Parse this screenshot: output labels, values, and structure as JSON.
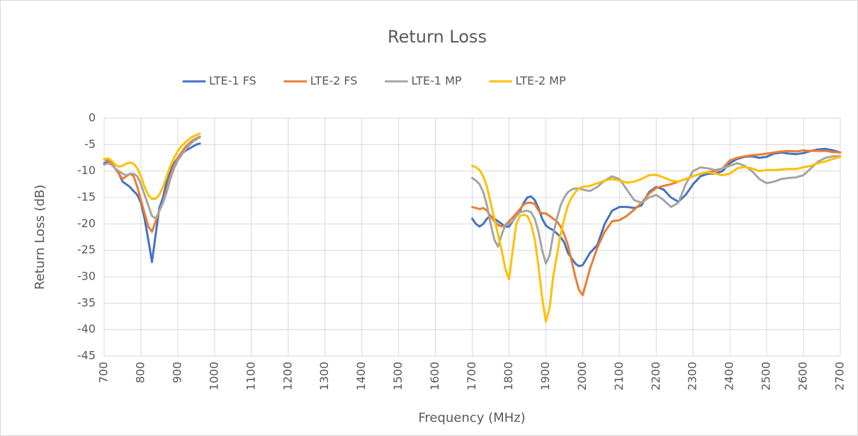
{
  "chart_data": {
    "type": "line",
    "title": "Return Loss",
    "x_label": "Frequency (MHz)",
    "y_label": "Return Loss (dB)",
    "legend": "top",
    "grid": true,
    "xlim": [
      700,
      2700
    ],
    "ylim": [
      -45,
      0
    ],
    "xticks": [
      700,
      800,
      900,
      1000,
      1100,
      1200,
      1300,
      1400,
      1500,
      1600,
      1700,
      1800,
      1900,
      2000,
      2100,
      2200,
      2300,
      2400,
      2500,
      2600,
      2700
    ],
    "yticks": [
      0,
      -5,
      -10,
      -15,
      -20,
      -25,
      -30,
      -35,
      -40,
      -45
    ],
    "x": [
      700,
      710,
      720,
      730,
      740,
      750,
      760,
      770,
      780,
      790,
      800,
      810,
      820,
      830,
      840,
      850,
      860,
      870,
      880,
      890,
      900,
      910,
      920,
      930,
      940,
      950,
      960,
      1000,
      1700,
      1710,
      1720,
      1730,
      1740,
      1750,
      1760,
      1770,
      1780,
      1790,
      1800,
      1810,
      1820,
      1830,
      1840,
      1850,
      1860,
      1870,
      1880,
      1890,
      1900,
      1910,
      1920,
      1930,
      1940,
      1950,
      1960,
      1970,
      1980,
      1990,
      2000,
      2020,
      2040,
      2060,
      2080,
      2100,
      2120,
      2140,
      2160,
      2180,
      2200,
      2220,
      2240,
      2260,
      2280,
      2300,
      2320,
      2340,
      2360,
      2380,
      2400,
      2420,
      2440,
      2460,
      2480,
      2500,
      2520,
      2540,
      2560,
      2580,
      2600,
      2620,
      2640,
      2660,
      2680,
      2700
    ],
    "series": [
      {
        "name": "LTE-1 FS",
        "color": "#4472c4",
        "values": [
          -8.5,
          -8.2,
          -8.6,
          -9.5,
          -10.5,
          -12,
          -12.5,
          -13,
          -13.8,
          -14.5,
          -16,
          -19,
          -23,
          -27.2,
          -22,
          -17,
          -15,
          -12,
          -10,
          -8.5,
          -7.5,
          -6.8,
          -6.2,
          -5.8,
          -5.4,
          -5,
          -4.8,
          null,
          -19,
          -20,
          -20.5,
          -20,
          -19,
          -18.5,
          -19,
          -19.5,
          -20,
          -20.5,
          -20.5,
          -19.5,
          -18.5,
          -17.5,
          -16,
          -15,
          -14.8,
          -15.5,
          -17,
          -19,
          -20.3,
          -20.8,
          -21.2,
          -21.8,
          -22.5,
          -23.5,
          -25.5,
          -26.5,
          -27.5,
          -28,
          -27.8,
          -25.5,
          -24,
          -20,
          -17.5,
          -16.8,
          -16.8,
          -17,
          -16.5,
          -14,
          -13,
          -13.5,
          -15,
          -15.8,
          -14.5,
          -12.5,
          -11,
          -10.5,
          -10.5,
          -10,
          -8.5,
          -7.7,
          -7.3,
          -7.2,
          -7.5,
          -7.3,
          -6.7,
          -6.5,
          -6.7,
          -6.8,
          -6.6,
          -6.2,
          -5.9,
          -5.8,
          -6.1,
          -6.5
        ]
      },
      {
        "name": "LTE-2 FS",
        "color": "#ed7d31",
        "values": [
          -7.8,
          -8,
          -8.5,
          -9.5,
          -10.5,
          -11.5,
          -11,
          -10.5,
          -11,
          -13,
          -15.5,
          -18,
          -20.5,
          -21.5,
          -19.5,
          -17.5,
          -16,
          -13.5,
          -11,
          -9,
          -7.5,
          -6.5,
          -5.5,
          -4.8,
          -4.2,
          -3.8,
          -3.5,
          null,
          -16.8,
          -17,
          -17.2,
          -17,
          -17.5,
          -18.5,
          -19.5,
          -20.2,
          -20.5,
          -20.2,
          -19.5,
          -18.8,
          -18,
          -17.2,
          -16.3,
          -16,
          -16,
          -16.2,
          -17.5,
          -18,
          -18,
          -18.5,
          -19,
          -19.5,
          -20.5,
          -22,
          -24,
          -27,
          -30,
          -32.5,
          -33.5,
          -28.5,
          -24.5,
          -21.5,
          -19.5,
          -19.3,
          -18.5,
          -17.3,
          -16,
          -14.3,
          -13.2,
          -12.8,
          -12.5,
          -12,
          -11.5,
          -11,
          -10.5,
          -10.2,
          -10,
          -9.5,
          -8,
          -7.5,
          -7.2,
          -7,
          -6.9,
          -6.7,
          -6.5,
          -6.3,
          -6.2,
          -6.3,
          -6.1,
          -6.2,
          -6.2,
          -6.2,
          -6.4,
          -6.5
        ]
      },
      {
        "name": "LTE-1 MP",
        "color": "#a5a5a5",
        "values": [
          -8.8,
          -8.5,
          -8.8,
          -9.5,
          -10,
          -10.5,
          -10.8,
          -10.5,
          -10.5,
          -11,
          -12.5,
          -14.5,
          -16.5,
          -18.5,
          -19,
          -17.5,
          -16,
          -14,
          -11.5,
          -9.5,
          -8,
          -7,
          -6,
          -5.2,
          -4.5,
          -4,
          -3.6,
          null,
          -11.3,
          -11.8,
          -12.5,
          -14,
          -16.5,
          -20,
          -23,
          -24.3,
          -22,
          -20.2,
          -20,
          -19.5,
          -18.5,
          -17.8,
          -17.6,
          -17.5,
          -17.8,
          -19,
          -21.5,
          -25,
          -27.5,
          -26,
          -22,
          -19,
          -16.5,
          -15,
          -14,
          -13.5,
          -13.3,
          -13.3,
          -13.5,
          -13.8,
          -13,
          -11.8,
          -11,
          -11.5,
          -13.5,
          -15.5,
          -16,
          -15,
          -14.5,
          -15.5,
          -16.8,
          -16,
          -12.5,
          -10,
          -9.3,
          -9.5,
          -9.8,
          -9.5,
          -9,
          -8.5,
          -9,
          -10,
          -11.5,
          -12.3,
          -12,
          -11.5,
          -11.3,
          -11.2,
          -10.8,
          -9.5,
          -8.2,
          -7.5,
          -7.2,
          -7.2
        ]
      },
      {
        "name": "LTE-2 MP",
        "color": "#ffc000",
        "values": [
          -7.8,
          -7.6,
          -8,
          -8.8,
          -9.2,
          -9,
          -8.6,
          -8.4,
          -8.6,
          -9.5,
          -11,
          -13,
          -14.5,
          -15.3,
          -15.2,
          -14.5,
          -13,
          -11,
          -9,
          -7.5,
          -6.2,
          -5.3,
          -4.6,
          -4,
          -3.5,
          -3.2,
          -2.9,
          null,
          -9,
          -9.3,
          -9.8,
          -11,
          -13,
          -16,
          -19,
          -22,
          -25,
          -28.5,
          -30.5,
          -25,
          -20,
          -18.5,
          -18.3,
          -18.5,
          -20,
          -23,
          -28,
          -34,
          -38.5,
          -36,
          -30,
          -26,
          -22,
          -19,
          -16.5,
          -15,
          -14,
          -13.3,
          -13,
          -12.8,
          -12.3,
          -11.8,
          -11.5,
          -11.8,
          -12.2,
          -12,
          -11.5,
          -10.8,
          -10.7,
          -11.2,
          -11.8,
          -12,
          -11.5,
          -11,
          -10.5,
          -10.2,
          -10.5,
          -10.8,
          -10.5,
          -9.5,
          -9.2,
          -9.5,
          -10,
          -9.8,
          -9.8,
          -9.7,
          -9.6,
          -9.6,
          -9.3,
          -9,
          -8.5,
          -8.2,
          -7.7,
          -7.3
        ]
      }
    ]
  }
}
